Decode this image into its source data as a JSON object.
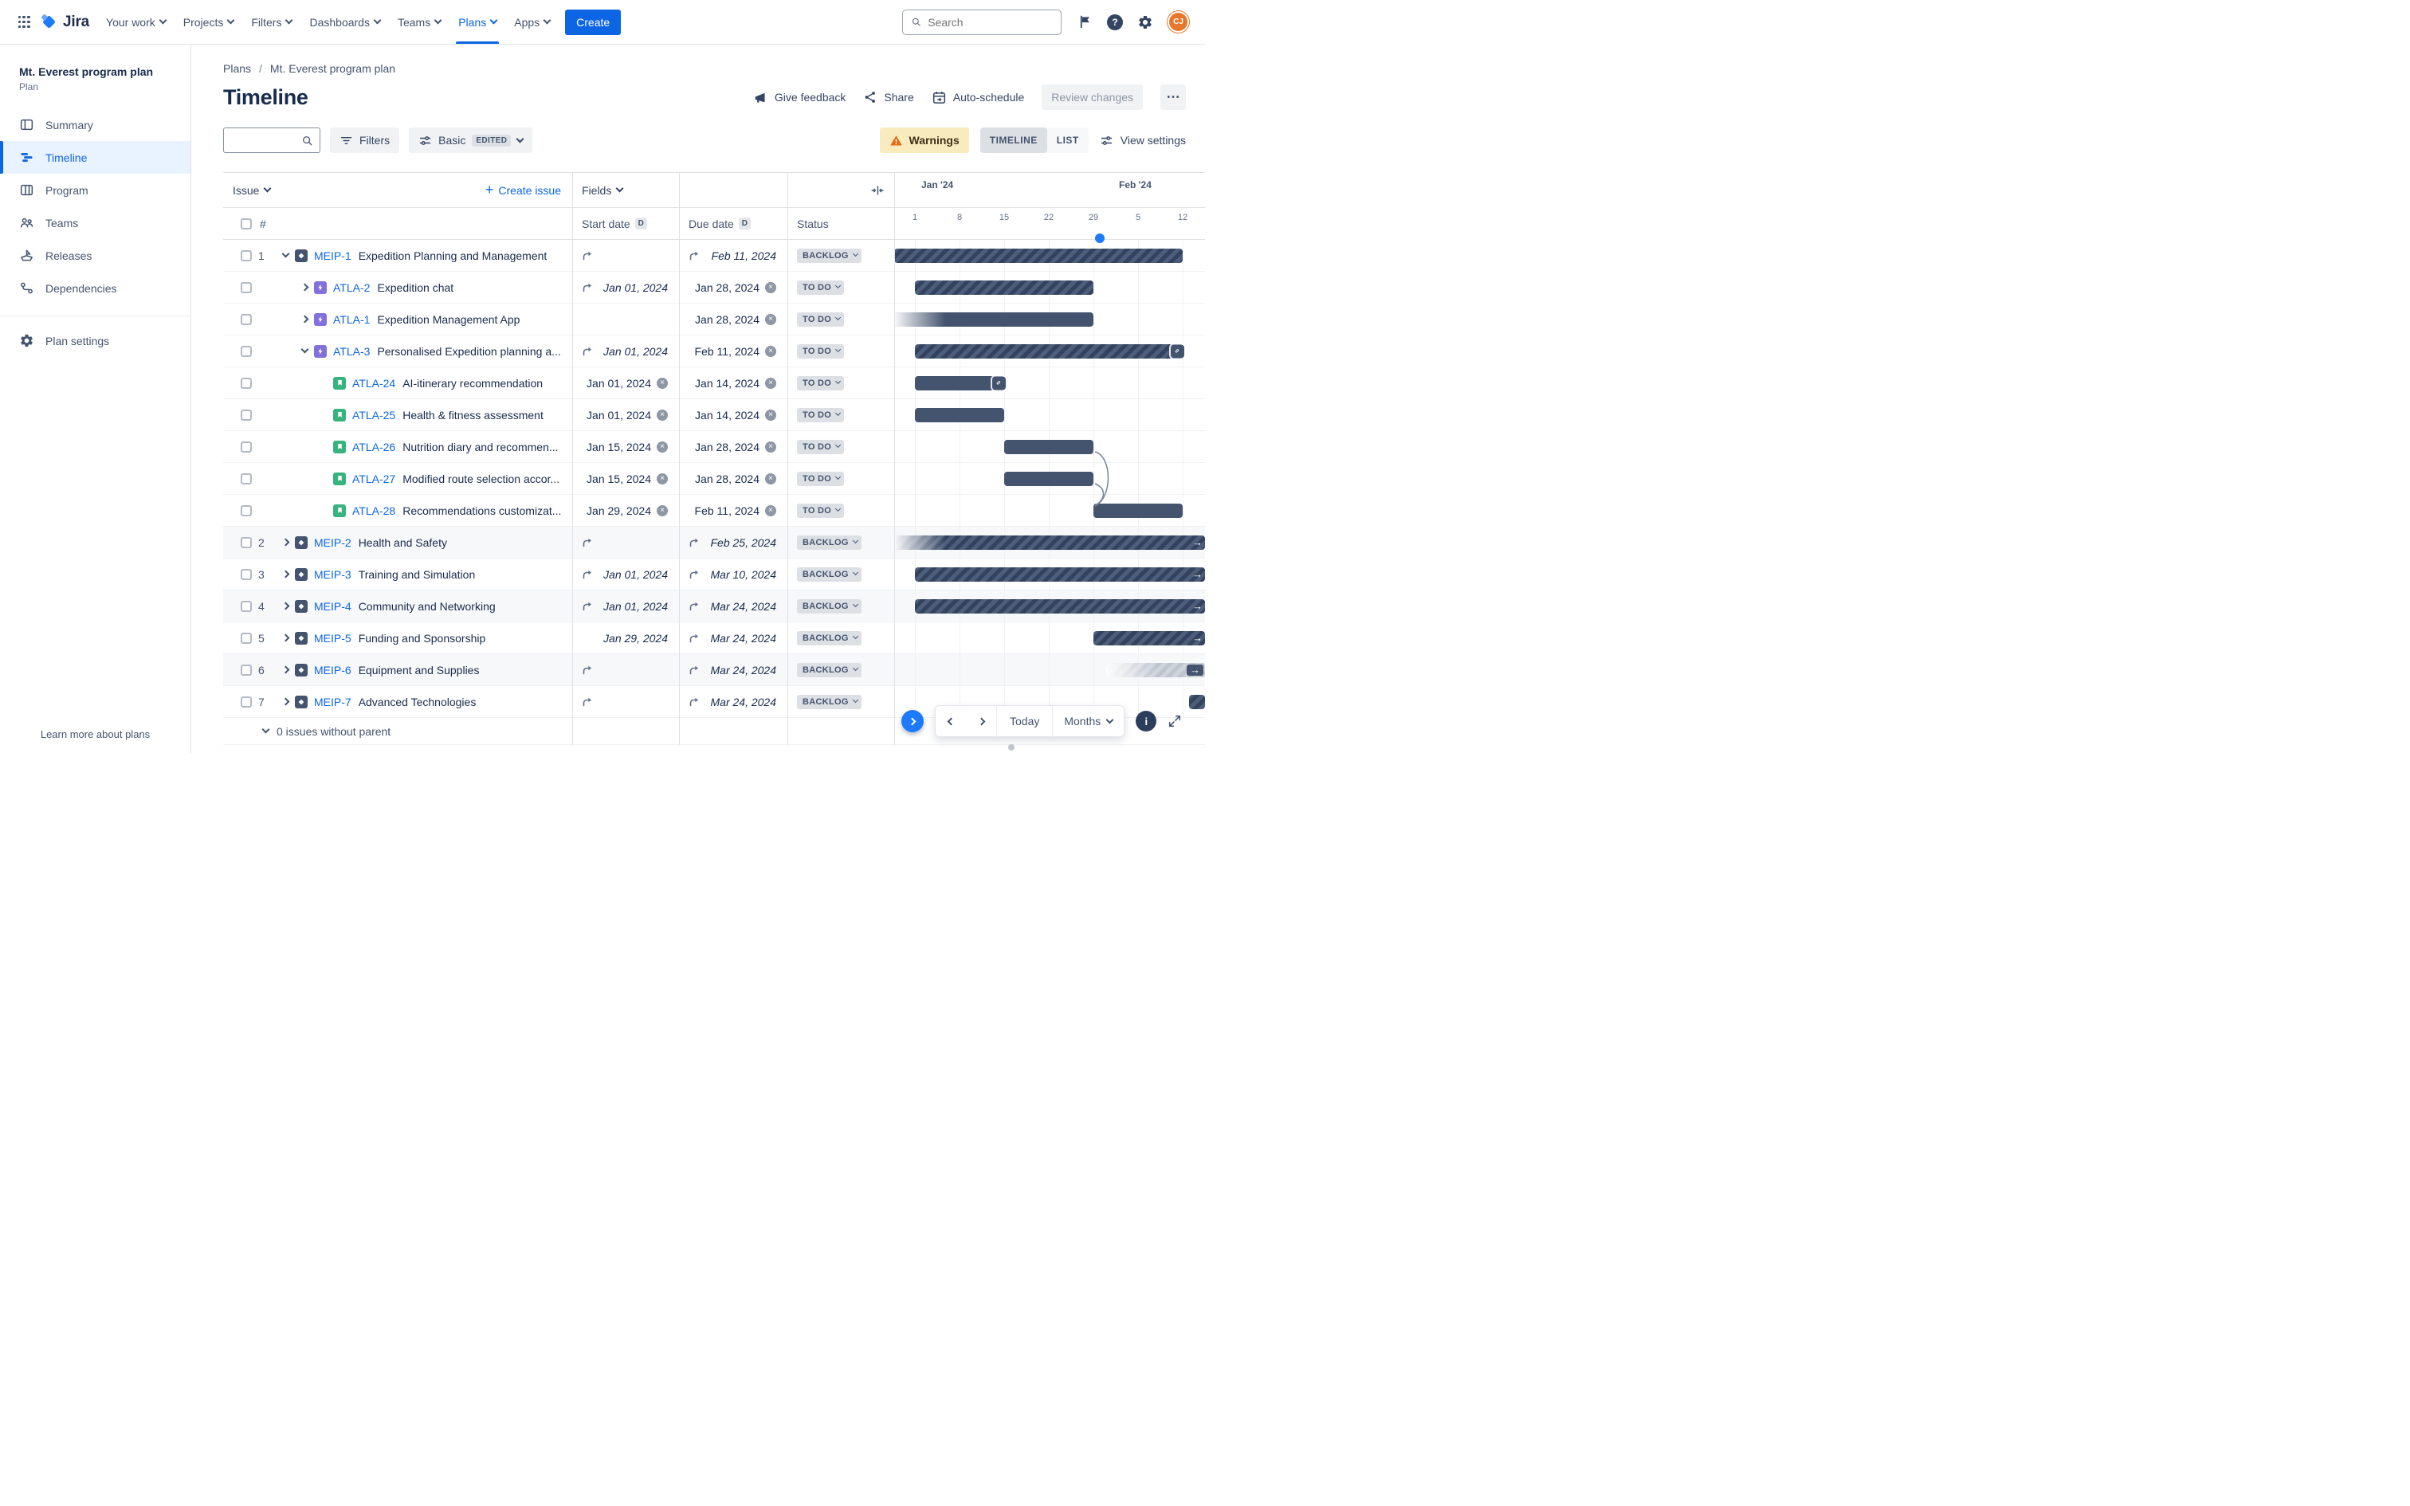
{
  "colors": {
    "accent": "#0C66E4",
    "bar_dark": "#44546F",
    "epic_purple": "#8270DB",
    "story_green": "#36B37E",
    "warning_bg": "#F8ECBF",
    "today_blue": "#1D7AFC"
  },
  "topnav": {
    "logo": "Jira",
    "items": [
      {
        "label": "Your work"
      },
      {
        "label": "Projects"
      },
      {
        "label": "Filters"
      },
      {
        "label": "Dashboards"
      },
      {
        "label": "Teams"
      },
      {
        "label": "Plans",
        "active": true
      },
      {
        "label": "Apps"
      }
    ],
    "create_label": "Create",
    "search_placeholder": "Search",
    "avatar_initials": "CJ"
  },
  "sidebar": {
    "plan_title": "Mt. Everest program plan",
    "plan_subtitle": "Plan",
    "items": [
      {
        "label": "Summary",
        "icon": "summary"
      },
      {
        "label": "Timeline",
        "icon": "timeline",
        "active": true
      },
      {
        "label": "Program",
        "icon": "program"
      },
      {
        "label": "Teams",
        "icon": "teams"
      },
      {
        "label": "Releases",
        "icon": "releases"
      },
      {
        "label": "Dependencies",
        "icon": "dependencies"
      }
    ],
    "settings_label": "Plan settings",
    "footer_link": "Learn more about plans"
  },
  "header": {
    "breadcrumb": [
      "Plans",
      "Mt. Everest program plan"
    ],
    "title": "Timeline",
    "actions": {
      "give_feedback": "Give feedback",
      "share": "Share",
      "auto_schedule": "Auto-schedule",
      "review_changes": "Review changes"
    }
  },
  "toolbar": {
    "filters_label": "Filters",
    "view_mode_label": "Basic",
    "view_mode_badge": "EDITED",
    "warnings_label": "Warnings",
    "segmented": [
      "TIMELINE",
      "LIST"
    ],
    "view_settings_label": "View settings"
  },
  "table": {
    "issue_header": "Issue",
    "create_issue_label": "Create issue",
    "fields_header": "Fields",
    "hash_header": "#",
    "columns": [
      {
        "label": "Start date",
        "badge": "D"
      },
      {
        "label": "Due date",
        "badge": "D"
      },
      {
        "label": "Status"
      }
    ],
    "footer": "0 issues without parent"
  },
  "timeline": {
    "months": [
      {
        "label": "Jan '24",
        "label_day": 2,
        "ticks": [
          {
            "t": "1",
            "day": 1
          },
          {
            "t": "8",
            "day": 8
          },
          {
            "t": "15",
            "day": 15
          },
          {
            "t": "22",
            "day": 22
          },
          {
            "t": "29",
            "day": 29
          }
        ]
      },
      {
        "label": "Feb '24",
        "label_day": 33,
        "ticks": [
          {
            "t": "5",
            "day": 36
          },
          {
            "t": "12",
            "day": 43
          }
        ]
      }
    ],
    "today_day": 30,
    "dependencies": [
      {
        "from_row": 6,
        "to_row": 8
      },
      {
        "from_row": 7,
        "to_row": 8
      }
    ]
  },
  "timeline_controls": {
    "today_label": "Today",
    "zoom_label": "Months"
  },
  "rows": [
    {
      "n": "1",
      "lvl": 0,
      "exp": "down",
      "type": "initiative",
      "key": "MEIP-1",
      "title": "Expedition Planning and Management",
      "start": {
        "arrow": true
      },
      "due": {
        "arrow": true,
        "text": "Feb 11, 2024",
        "italic": true
      },
      "status": "BACKLOG",
      "bar": {
        "from": null,
        "to": 42,
        "pattern": "striped"
      }
    },
    {
      "n": "",
      "lvl": 1,
      "exp": "right",
      "type": "epic",
      "key": "ATLA-2",
      "title": "Expedition chat",
      "start": {
        "arrow": true,
        "text": "Jan 01, 2024",
        "italic": true
      },
      "due": {
        "text": "Jan 28, 2024",
        "clear": true
      },
      "status": "TO DO",
      "bar": {
        "from": 1,
        "to": 28,
        "pattern": "striped"
      }
    },
    {
      "n": "",
      "lvl": 1,
      "exp": "right",
      "type": "epic",
      "key": "ATLA-1",
      "title": "Expedition Management App",
      "start": {},
      "due": {
        "text": "Jan 28, 2024",
        "clear": true
      },
      "status": "TO DO",
      "bar": {
        "from": null,
        "to": 28,
        "pattern": "solid",
        "fade": true
      }
    },
    {
      "n": "",
      "lvl": 1,
      "exp": "down",
      "type": "epic",
      "key": "ATLA-3",
      "title": "Personalised Expedition planning a...",
      "start": {
        "arrow": true,
        "text": "Jan 01, 2024",
        "italic": true
      },
      "due": {
        "text": "Feb 11, 2024",
        "clear": true
      },
      "status": "TO DO",
      "bar": {
        "from": 1,
        "to": 42,
        "pattern": "striped",
        "link": true
      }
    },
    {
      "n": "",
      "lvl": 2,
      "exp": "none",
      "type": "story",
      "key": "ATLA-24",
      "title": "AI-itinerary recommendation",
      "start": {
        "text": "Jan 01, 2024",
        "clear": true
      },
      "due": {
        "text": "Jan 14, 2024",
        "clear": true
      },
      "status": "TO DO",
      "bar": {
        "from": 1,
        "to": 14,
        "pattern": "solid",
        "link": true
      }
    },
    {
      "n": "",
      "lvl": 2,
      "exp": "none",
      "type": "story",
      "key": "ATLA-25",
      "title": "Health & fitness assessment",
      "start": {
        "text": "Jan 01, 2024",
        "clear": true
      },
      "due": {
        "text": "Jan 14, 2024",
        "clear": true
      },
      "status": "TO DO",
      "bar": {
        "from": 1,
        "to": 14,
        "pattern": "solid"
      }
    },
    {
      "n": "",
      "lvl": 2,
      "exp": "none",
      "type": "story",
      "key": "ATLA-26",
      "title": "Nutrition diary and recommen...",
      "start": {
        "text": "Jan 15, 2024",
        "clear": true
      },
      "due": {
        "text": "Jan 28, 2024",
        "clear": true
      },
      "status": "TO DO",
      "bar": {
        "from": 15,
        "to": 28,
        "pattern": "solid"
      }
    },
    {
      "n": "",
      "lvl": 2,
      "exp": "none",
      "type": "story",
      "key": "ATLA-27",
      "title": "Modified route selection accor...",
      "start": {
        "text": "Jan 15, 2024",
        "clear": true
      },
      "due": {
        "text": "Jan 28, 2024",
        "clear": true
      },
      "status": "TO DO",
      "bar": {
        "from": 15,
        "to": 28,
        "pattern": "solid"
      }
    },
    {
      "n": "",
      "lvl": 2,
      "exp": "none",
      "type": "story",
      "key": "ATLA-28",
      "title": "Recommendations customizat...",
      "start": {
        "text": "Jan 29, 2024",
        "clear": true
      },
      "due": {
        "text": "Feb 11, 2024",
        "clear": true
      },
      "status": "TO DO",
      "bar": {
        "from": 29,
        "to": 42,
        "pattern": "solid"
      }
    },
    {
      "n": "2",
      "lvl": 0,
      "exp": "right",
      "type": "initiative",
      "key": "MEIP-2",
      "title": "Health and Safety",
      "shaded": true,
      "start": {
        "arrow": true
      },
      "due": {
        "arrow": true,
        "text": "Feb 25, 2024",
        "italic": true
      },
      "status": "BACKLOG",
      "bar": {
        "from": null,
        "to": null,
        "pattern": "striped",
        "fade": true,
        "arrow": true
      }
    },
    {
      "n": "3",
      "lvl": 0,
      "exp": "right",
      "type": "initiative",
      "key": "MEIP-3",
      "title": "Training and Simulation",
      "start": {
        "arrow": true,
        "text": "Jan 01, 2024",
        "italic": true
      },
      "due": {
        "arrow": true,
        "text": "Mar 10, 2024",
        "italic": true
      },
      "status": "BACKLOG",
      "bar": {
        "from": 1,
        "to": null,
        "pattern": "striped",
        "arrow": true
      }
    },
    {
      "n": "4",
      "lvl": 0,
      "exp": "right",
      "type": "initiative",
      "key": "MEIP-4",
      "title": "Community and Networking",
      "shaded": true,
      "start": {
        "arrow": true,
        "text": "Jan 01, 2024",
        "italic": true
      },
      "due": {
        "arrow": true,
        "text": "Mar 24, 2024",
        "italic": true
      },
      "status": "BACKLOG",
      "bar": {
        "from": 1,
        "to": null,
        "pattern": "striped",
        "arrow": true
      }
    },
    {
      "n": "5",
      "lvl": 0,
      "exp": "right",
      "type": "initiative",
      "key": "MEIP-5",
      "title": "Funding and Sponsorship",
      "start": {
        "text": "Jan 29, 2024",
        "italic": true
      },
      "due": {
        "arrow": true,
        "text": "Mar 24, 2024",
        "italic": true
      },
      "status": "BACKLOG",
      "bar": {
        "from": 29,
        "to": null,
        "pattern": "striped",
        "arrow": true
      }
    },
    {
      "n": "6",
      "lvl": 0,
      "exp": "right",
      "type": "initiative",
      "key": "MEIP-6",
      "title": "Equipment and Supplies",
      "shaded": true,
      "start": {
        "arrow": true
      },
      "due": {
        "arrow": true,
        "text": "Mar 24, 2024",
        "italic": true
      },
      "status": "BACKLOG",
      "bar": {
        "from": 31,
        "to": null,
        "pattern": "striped",
        "fade": true,
        "arrow": true,
        "light": true
      }
    },
    {
      "n": "7",
      "lvl": 0,
      "exp": "right",
      "type": "initiative",
      "key": "MEIP-7",
      "title": "Advanced Technologies",
      "start": {
        "arrow": true
      },
      "due": {
        "arrow": true,
        "text": "Mar 24, 2024",
        "italic": true
      },
      "status": "BACKLOG",
      "bar": {
        "from": 44,
        "to": null,
        "pattern": "striped"
      }
    }
  ]
}
